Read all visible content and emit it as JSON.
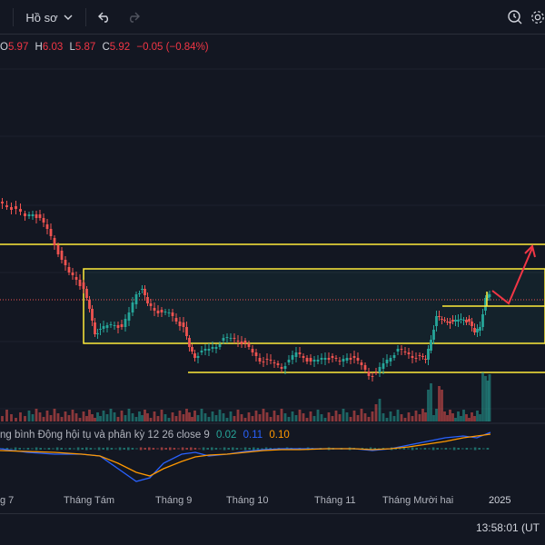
{
  "toolbar": {
    "profile_label": "Hồ sơ",
    "icons": [
      "chevron-down-icon",
      "undo-icon",
      "redo-icon",
      "search-clock-icon",
      "gear-icon"
    ]
  },
  "ohlc": {
    "open_label": "O",
    "open_value": "5.97",
    "high_label": "H",
    "high_value": "6.03",
    "low_label": "L",
    "low_value": "5.87",
    "close_label": "C",
    "close_value": "5.92",
    "change": "−0.05 (−0.84%)"
  },
  "macd": {
    "title": "ng bình Động hội tụ và phân kỳ",
    "params": "12 26 close 9",
    "value1": "0.02",
    "value2": "0.11",
    "value3": "0.10"
  },
  "time_axis": [
    "g 7",
    "Tháng Tám",
    "Tháng 9",
    "Tháng 10",
    "Tháng 11",
    "Tháng Mười hai",
    "2025"
  ],
  "clock": "13:58:01 (UT",
  "colors": {
    "background": "#131722",
    "up": "#26a69a",
    "down": "#ef5350",
    "annotation": "#ffeb3b",
    "arrow": "#f23645",
    "macd_line": "#2962ff",
    "signal_line": "#ff9800"
  }
}
